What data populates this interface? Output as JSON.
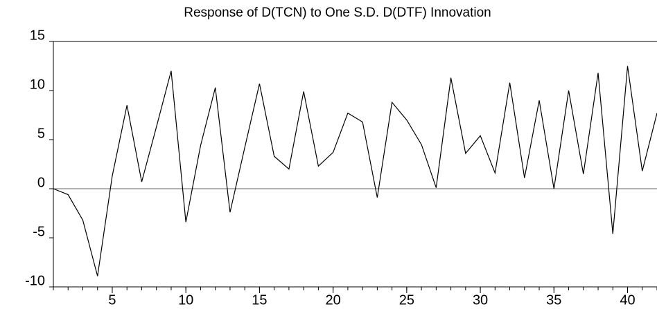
{
  "chart_data": {
    "type": "line",
    "title": "Response of D(TCN) to One S.D. D(DTF) Innovation",
    "x": [
      1,
      2,
      3,
      4,
      5,
      6,
      7,
      8,
      9,
      10,
      11,
      12,
      13,
      14,
      15,
      16,
      17,
      18,
      19,
      20,
      21,
      22,
      23,
      24,
      25,
      26,
      27,
      28,
      29,
      30,
      31,
      32,
      33,
      34,
      35,
      36,
      37,
      38,
      39,
      40,
      41,
      42
    ],
    "values": [
      0,
      -0.6,
      -3.2,
      -8.9,
      1.3,
      8.5,
      0.7,
      6.3,
      12.0,
      -3.4,
      4.4,
      10.3,
      -2.4,
      4.2,
      10.7,
      3.3,
      2.0,
      9.9,
      2.3,
      3.7,
      7.7,
      6.8,
      -0.9,
      8.8,
      7.0,
      4.5,
      0.1,
      11.3,
      3.6,
      5.4,
      1.6,
      10.8,
      1.1,
      9.0,
      0,
      10.0,
      1.5,
      11.8,
      -4.6,
      12.5,
      1.8,
      7.7
    ],
    "color": "#000000",
    "xlim": [
      1,
      42
    ],
    "xticks": [
      5,
      10,
      15,
      20,
      25,
      30,
      35,
      40
    ],
    "ylim": [
      -10,
      15
    ],
    "yticks": [
      -10,
      -5,
      0,
      5,
      10,
      15
    ],
    "zero_line": true
  }
}
